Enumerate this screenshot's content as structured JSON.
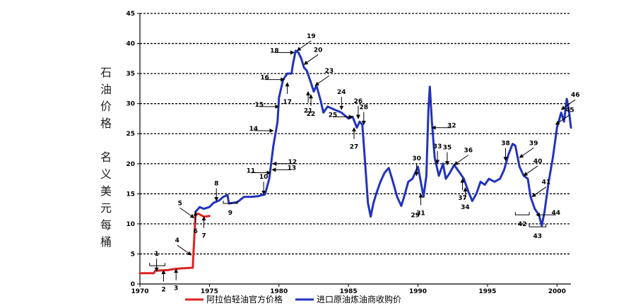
{
  "chart_data": {
    "type": "line",
    "title": "",
    "xlabel": "",
    "ylabel_col1": "石油价格",
    "ylabel_col2": "名义美元每桶",
    "xlim": [
      1970,
      2001
    ],
    "ylim": [
      0,
      45
    ],
    "x_ticks": [
      1970,
      1975,
      1980,
      1985,
      1990,
      1995,
      2000
    ],
    "y_ticks": [
      0,
      5,
      10,
      15,
      20,
      25,
      30,
      35,
      40,
      45
    ],
    "grid": "horizontal-dashed",
    "legend_position": "bottom",
    "series": [
      {
        "name": "阿拉伯轻油官方价格",
        "color": "#dd2222",
        "points": [
          [
            1970.0,
            1.8
          ],
          [
            1971.0,
            1.8
          ],
          [
            1971.1,
            2.2
          ],
          [
            1972.0,
            2.3
          ],
          [
            1972.5,
            2.5
          ],
          [
            1973.0,
            2.6
          ],
          [
            1973.8,
            2.7
          ],
          [
            1973.85,
            5.1
          ],
          [
            1974.0,
            11.6
          ],
          [
            1974.2,
            11.7
          ],
          [
            1974.6,
            11.2
          ],
          [
            1975.0,
            11.3
          ]
        ]
      },
      {
        "name": "进口原油炼油商收购价",
        "color": "#2233bb",
        "points": [
          [
            1974.0,
            12.0
          ],
          [
            1974.3,
            12.8
          ],
          [
            1974.6,
            12.5
          ],
          [
            1975.0,
            12.8
          ],
          [
            1975.3,
            13.5
          ],
          [
            1975.7,
            13.9
          ],
          [
            1976.0,
            14.5
          ],
          [
            1976.3,
            14.8
          ],
          [
            1976.4,
            13.4
          ],
          [
            1977.0,
            13.6
          ],
          [
            1977.5,
            14.5
          ],
          [
            1978.0,
            14.5
          ],
          [
            1978.5,
            14.6
          ],
          [
            1979.0,
            14.9
          ],
          [
            1979.3,
            17.5
          ],
          [
            1979.6,
            23.0
          ],
          [
            1979.9,
            27.0
          ],
          [
            1980.0,
            31.0
          ],
          [
            1980.3,
            34.0
          ],
          [
            1980.6,
            35.0
          ],
          [
            1980.9,
            35.0
          ],
          [
            1981.0,
            36.5
          ],
          [
            1981.2,
            38.8
          ],
          [
            1981.4,
            38.5
          ],
          [
            1981.6,
            37.5
          ],
          [
            1981.8,
            36.0
          ],
          [
            1982.0,
            35.5
          ],
          [
            1982.3,
            33.5
          ],
          [
            1982.5,
            32.0
          ],
          [
            1982.7,
            33.0
          ],
          [
            1983.0,
            30.5
          ],
          [
            1983.2,
            28.5
          ],
          [
            1983.5,
            29.5
          ],
          [
            1984.0,
            29.0
          ],
          [
            1984.5,
            28.5
          ],
          [
            1985.0,
            27.5
          ],
          [
            1985.3,
            27.8
          ],
          [
            1985.6,
            26.0
          ],
          [
            1985.8,
            27.0
          ],
          [
            1986.0,
            26.5
          ],
          [
            1986.2,
            20.0
          ],
          [
            1986.4,
            13.5
          ],
          [
            1986.6,
            11.2
          ],
          [
            1986.8,
            13.5
          ],
          [
            1987.0,
            15.0
          ],
          [
            1987.3,
            17.0
          ],
          [
            1987.6,
            18.5
          ],
          [
            1987.9,
            19.3
          ],
          [
            1988.2,
            17.0
          ],
          [
            1988.5,
            14.5
          ],
          [
            1988.8,
            13.0
          ],
          [
            1989.0,
            14.5
          ],
          [
            1989.3,
            17.0
          ],
          [
            1989.6,
            17.5
          ],
          [
            1989.9,
            19.0
          ],
          [
            1990.0,
            19.5
          ],
          [
            1990.2,
            17.0
          ],
          [
            1990.4,
            14.5
          ],
          [
            1990.6,
            18.0
          ],
          [
            1990.75,
            29.0
          ],
          [
            1990.85,
            32.8
          ],
          [
            1991.0,
            27.0
          ],
          [
            1991.2,
            21.0
          ],
          [
            1991.5,
            18.0
          ],
          [
            1991.8,
            20.0
          ],
          [
            1992.0,
            17.5
          ],
          [
            1992.3,
            18.5
          ],
          [
            1992.6,
            19.8
          ],
          [
            1993.0,
            18.5
          ],
          [
            1993.3,
            17.5
          ],
          [
            1993.6,
            15.5
          ],
          [
            1993.9,
            13.8
          ],
          [
            1994.2,
            15.0
          ],
          [
            1994.5,
            17.0
          ],
          [
            1994.8,
            16.5
          ],
          [
            1995.1,
            17.5
          ],
          [
            1995.5,
            17.0
          ],
          [
            1995.9,
            17.5
          ],
          [
            1996.2,
            19.0
          ],
          [
            1996.5,
            21.5
          ],
          [
            1996.8,
            23.3
          ],
          [
            1997.0,
            23.0
          ],
          [
            1997.3,
            19.5
          ],
          [
            1997.6,
            18.0
          ],
          [
            1997.9,
            17.5
          ],
          [
            1998.1,
            14.5
          ],
          [
            1998.4,
            12.5
          ],
          [
            1998.7,
            11.5
          ],
          [
            1998.9,
            9.7
          ],
          [
            1999.1,
            12.0
          ],
          [
            1999.4,
            17.0
          ],
          [
            1999.7,
            21.0
          ],
          [
            2000.0,
            26.0
          ],
          [
            2000.3,
            28.5
          ],
          [
            2000.5,
            27.0
          ],
          [
            2000.7,
            30.8
          ],
          [
            2000.85,
            29.0
          ],
          [
            2001.0,
            26.0
          ]
        ]
      }
    ],
    "annotations": [
      {
        "label": "1",
        "x": 1971.2,
        "y": 2.1,
        "dir": "down",
        "bracket": [
          1970.7,
          1971.8
        ]
      },
      {
        "label": "2",
        "x": 1971.7,
        "y": 2.3,
        "dir": "up"
      },
      {
        "label": "3",
        "x": 1972.6,
        "y": 2.5,
        "dir": "up"
      },
      {
        "label": "4",
        "x": 1973.7,
        "y": 4.8,
        "dir": "down-right"
      },
      {
        "label": "5",
        "x": 1973.9,
        "y": 11.0,
        "dir": "down-right"
      },
      {
        "label": "6",
        "x": 1974.0,
        "y": 12.0,
        "dir": "up"
      },
      {
        "label": "7",
        "x": 1974.6,
        "y": 11.2,
        "dir": "up"
      },
      {
        "label": "8",
        "x": 1975.5,
        "y": 13.8,
        "dir": "down"
      },
      {
        "label": "9",
        "x": 1976.5,
        "y": 13.4,
        "dir": "none",
        "bracket": [
          1976.0,
          1977.0
        ]
      },
      {
        "label": "10",
        "x": 1978.9,
        "y": 14.9,
        "dir": "down"
      },
      {
        "label": "11",
        "x": 1979.4,
        "y": 18.5,
        "dir": "right"
      },
      {
        "label": "12",
        "x": 1979.55,
        "y": 20.0,
        "dir": "left"
      },
      {
        "label": "13",
        "x": 1979.5,
        "y": 19.0,
        "dir": "left"
      },
      {
        "label": "14",
        "x": 1979.6,
        "y": 25.5,
        "dir": "right"
      },
      {
        "label": "15",
        "x": 1980.0,
        "y": 29.5,
        "dir": "right"
      },
      {
        "label": "16",
        "x": 1980.4,
        "y": 34.0,
        "dir": "right"
      },
      {
        "label": "17",
        "x": 1980.6,
        "y": 33.5,
        "dir": "up"
      },
      {
        "label": "18",
        "x": 1981.1,
        "y": 38.5,
        "dir": "right"
      },
      {
        "label": "19",
        "x": 1981.3,
        "y": 38.8,
        "dir": "down-left"
      },
      {
        "label": "20",
        "x": 1981.8,
        "y": 36.5,
        "dir": "down-left"
      },
      {
        "label": "21",
        "x": 1982.1,
        "y": 32.0,
        "dir": "up"
      },
      {
        "label": "22",
        "x": 1982.3,
        "y": 31.5,
        "dir": "up"
      },
      {
        "label": "23",
        "x": 1982.6,
        "y": 33.0,
        "dir": "down-left"
      },
      {
        "label": "24",
        "x": 1984.5,
        "y": 29.0,
        "dir": "down"
      },
      {
        "label": "25",
        "x": 1985.3,
        "y": 27.8,
        "dir": "right"
      },
      {
        "label": "26",
        "x": 1985.7,
        "y": 27.5,
        "dir": "down"
      },
      {
        "label": "27",
        "x": 1985.4,
        "y": 26.0,
        "dir": "up"
      },
      {
        "label": "28",
        "x": 1986.1,
        "y": 26.5,
        "dir": "down"
      },
      {
        "label": "29",
        "x": 1989.8,
        "y": 13.0,
        "dir": "none"
      },
      {
        "label": "30",
        "x": 1989.9,
        "y": 18.0,
        "dir": "down"
      },
      {
        "label": "31",
        "x": 1990.2,
        "y": 15.0,
        "dir": "up"
      },
      {
        "label": "32",
        "x": 1991.0,
        "y": 26.0,
        "dir": "left"
      },
      {
        "label": "33",
        "x": 1991.4,
        "y": 20.0,
        "dir": "down"
      },
      {
        "label": "34",
        "x": 1993.4,
        "y": 16.0,
        "dir": "up"
      },
      {
        "label": "35",
        "x": 1992.1,
        "y": 19.8,
        "dir": "down"
      },
      {
        "label": "36",
        "x": 1992.6,
        "y": 19.8,
        "dir": "down-left"
      },
      {
        "label": "37",
        "x": 1993.2,
        "y": 17.5,
        "dir": "up"
      },
      {
        "label": "38",
        "x": 1996.3,
        "y": 20.5,
        "dir": "down"
      },
      {
        "label": "39",
        "x": 1997.3,
        "y": 21.0,
        "dir": "down-left"
      },
      {
        "label": "40",
        "x": 1997.6,
        "y": 18.0,
        "dir": "down-left"
      },
      {
        "label": "41",
        "x": 1998.2,
        "y": 14.5,
        "dir": "down-left"
      },
      {
        "label": "42",
        "x": 1997.5,
        "y": 11.5,
        "dir": "none",
        "bracket": [
          1997.0,
          1998.0
        ]
      },
      {
        "label": "43",
        "x": 1998.6,
        "y": 9.5,
        "dir": "none",
        "bracket": [
          1998.0,
          1999.2
        ]
      },
      {
        "label": "44",
        "x": 1998.5,
        "y": 11.5,
        "dir": "left"
      },
      {
        "label": "45",
        "x": 1999.9,
        "y": 26.5,
        "dir": "down-left"
      },
      {
        "label": "46",
        "x": 2000.3,
        "y": 29.0,
        "dir": "down-left"
      }
    ]
  }
}
